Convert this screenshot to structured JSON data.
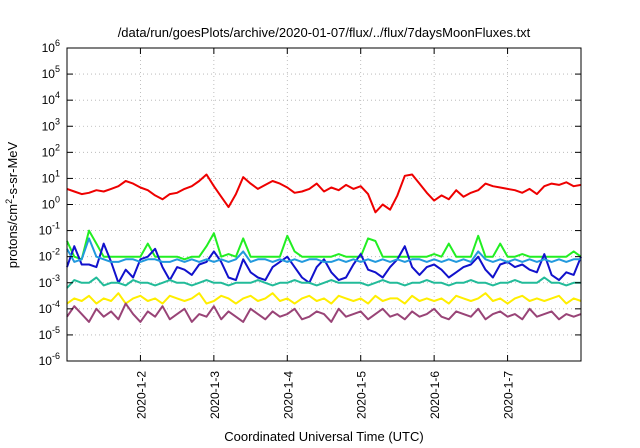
{
  "chart_data": {
    "type": "line",
    "title": "/data/run/goesPlots/archive/2020-01-07/flux/../flux/7daysMoonFluxes.txt",
    "xlabel": "Coordinated Universal Time (UTC)",
    "ylabel_base": "protons/cm",
    "ylabel_sup": "2",
    "ylabel_rest": "-s-sr-MeV",
    "y_scale": "log",
    "ylim_exp": [
      -6,
      6
    ],
    "y_ticks": [
      {
        "base": "10",
        "exp": "-6"
      },
      {
        "base": "10",
        "exp": "-5"
      },
      {
        "base": "10",
        "exp": "-4"
      },
      {
        "base": "10",
        "exp": "-3"
      },
      {
        "base": "10",
        "exp": "-2"
      },
      {
        "base": "10",
        "exp": "-1"
      },
      {
        "base": "10",
        "exp": "0"
      },
      {
        "base": "10",
        "exp": "1"
      },
      {
        "base": "10",
        "exp": "2"
      },
      {
        "base": "10",
        "exp": "3"
      },
      {
        "base": "10",
        "exp": "4"
      },
      {
        "base": "10",
        "exp": "5"
      },
      {
        "base": "10",
        "exp": "6"
      }
    ],
    "x_range": [
      "2020-01-01T00:00",
      "2020-01-08T00:00"
    ],
    "x_ticks": [
      "2020-1-2",
      "2020-1-3",
      "2020-1-4",
      "2020-1-5",
      "2020-1-6",
      "2020-1-7"
    ],
    "grid": true,
    "series": [
      {
        "color": "#ee0000",
        "x_days": [
          0,
          0.1,
          0.2,
          0.3,
          0.4,
          0.5,
          0.6,
          0.7,
          0.8,
          0.9,
          1.0,
          1.1,
          1.2,
          1.3,
          1.4,
          1.5,
          1.6,
          1.7,
          1.8,
          1.9,
          2.0,
          2.1,
          2.2,
          2.3,
          2.4,
          2.5,
          2.6,
          2.7,
          2.8,
          2.9,
          3.0,
          3.1,
          3.2,
          3.3,
          3.4,
          3.5,
          3.6,
          3.7,
          3.8,
          3.9,
          4.0,
          4.1,
          4.2,
          4.3,
          4.4,
          4.5,
          4.6,
          4.7,
          4.8,
          4.9,
          5.0,
          5.1,
          5.2,
          5.3,
          5.4,
          5.5,
          5.6,
          5.7,
          5.8,
          5.9,
          6.0,
          6.1,
          6.2,
          6.3,
          6.4,
          6.5,
          6.6,
          6.7,
          6.8,
          6.9,
          7.0
        ],
        "log10_y": [
          0.6,
          0.5,
          0.4,
          0.45,
          0.55,
          0.5,
          0.6,
          0.7,
          0.9,
          0.8,
          0.65,
          0.55,
          0.35,
          0.2,
          0.4,
          0.45,
          0.6,
          0.7,
          0.9,
          1.15,
          0.7,
          0.3,
          -0.1,
          0.4,
          1.05,
          0.8,
          0.6,
          0.75,
          0.9,
          0.8,
          0.65,
          0.45,
          0.5,
          0.6,
          0.8,
          0.5,
          0.65,
          0.55,
          0.75,
          0.6,
          0.7,
          0.4,
          -0.3,
          0.0,
          -0.2,
          0.35,
          1.1,
          1.15,
          0.8,
          0.45,
          0.15,
          0.35,
          0.2,
          0.55,
          0.3,
          0.45,
          0.55,
          0.8,
          0.7,
          0.65,
          0.6,
          0.55,
          0.45,
          0.6,
          0.4,
          0.7,
          0.8,
          0.75,
          0.85,
          0.7,
          0.75
        ]
      },
      {
        "color": "#22ee22",
        "x_days": [
          0,
          0.1,
          0.2,
          0.3,
          0.4,
          0.5,
          0.6,
          0.7,
          0.8,
          0.9,
          1.0,
          1.1,
          1.2,
          1.3,
          1.4,
          1.5,
          1.6,
          1.7,
          1.8,
          1.9,
          2.0,
          2.1,
          2.2,
          2.3,
          2.4,
          2.5,
          2.6,
          2.7,
          2.8,
          2.9,
          3.0,
          3.1,
          3.2,
          3.3,
          3.4,
          3.5,
          3.6,
          3.7,
          3.8,
          3.9,
          4.0,
          4.1,
          4.2,
          4.3,
          4.4,
          4.5,
          4.6,
          4.7,
          4.8,
          4.9,
          5.0,
          5.1,
          5.2,
          5.3,
          5.4,
          5.5,
          5.6,
          5.7,
          5.8,
          5.9,
          6.0,
          6.1,
          6.2,
          6.3,
          6.4,
          6.5,
          6.6,
          6.7,
          6.8,
          6.9,
          7.0
        ],
        "log10_y": [
          -1.4,
          -2.0,
          -2.1,
          -1.0,
          -1.5,
          -2.0,
          -2.0,
          -2.0,
          -2.0,
          -2.0,
          -2.0,
          -1.5,
          -2.0,
          -2.0,
          -2.0,
          -2.0,
          -2.1,
          -2.0,
          -2.0,
          -1.6,
          -1.1,
          -2.0,
          -1.9,
          -2.0,
          -1.3,
          -2.0,
          -2.0,
          -2.0,
          -2.0,
          -2.0,
          -1.2,
          -1.8,
          -2.0,
          -2.0,
          -2.0,
          -2.0,
          -2.0,
          -1.9,
          -2.0,
          -2.0,
          -2.0,
          -1.3,
          -1.4,
          -2.0,
          -2.0,
          -2.0,
          -2.0,
          -2.0,
          -2.0,
          -2.0,
          -1.9,
          -2.0,
          -1.5,
          -2.0,
          -2.0,
          -2.0,
          -1.2,
          -2.0,
          -2.0,
          -1.5,
          -2.0,
          -2.0,
          -1.9,
          -2.0,
          -2.0,
          -2.0,
          -2.0,
          -2.0,
          -2.0,
          -1.8,
          -2.0
        ]
      },
      {
        "color": "#1111cc",
        "x_days": [
          0,
          0.1,
          0.2,
          0.3,
          0.4,
          0.5,
          0.6,
          0.7,
          0.8,
          0.9,
          1.0,
          1.1,
          1.2,
          1.3,
          1.4,
          1.5,
          1.6,
          1.7,
          1.8,
          1.9,
          2.0,
          2.1,
          2.2,
          2.3,
          2.4,
          2.5,
          2.6,
          2.7,
          2.8,
          2.9,
          3.0,
          3.1,
          3.2,
          3.3,
          3.4,
          3.5,
          3.6,
          3.7,
          3.8,
          3.9,
          4.0,
          4.1,
          4.2,
          4.3,
          4.4,
          4.5,
          4.6,
          4.7,
          4.8,
          4.9,
          5.0,
          5.1,
          5.2,
          5.3,
          5.4,
          5.5,
          5.6,
          5.7,
          5.8,
          5.9,
          6.0,
          6.1,
          6.2,
          6.3,
          6.4,
          6.5,
          6.6,
          6.7,
          6.8,
          6.9,
          7.0
        ],
        "log10_y": [
          -2.4,
          -1.6,
          -2.3,
          -2.3,
          -2.4,
          -1.5,
          -2.2,
          -3.0,
          -2.5,
          -2.8,
          -2.1,
          -2.0,
          -1.7,
          -2.4,
          -2.9,
          -2.4,
          -2.5,
          -2.7,
          -2.3,
          -2.2,
          -1.8,
          -2.2,
          -2.8,
          -2.9,
          -2.1,
          -2.6,
          -2.8,
          -2.9,
          -2.4,
          -2.2,
          -2.0,
          -2.4,
          -2.8,
          -3.0,
          -2.4,
          -2.1,
          -2.6,
          -2.9,
          -2.8,
          -2.3,
          -1.9,
          -2.5,
          -2.6,
          -2.8,
          -2.4,
          -2.1,
          -1.6,
          -2.4,
          -2.7,
          -2.4,
          -2.3,
          -2.5,
          -2.8,
          -2.6,
          -2.4,
          -2.3,
          -2.0,
          -2.5,
          -2.8,
          -2.3,
          -2.2,
          -2.4,
          -2.3,
          -2.5,
          -2.6,
          -1.9,
          -2.7,
          -2.9,
          -2.6,
          -2.7,
          -2.0
        ]
      },
      {
        "color": "#2299dd",
        "x_days": [
          0,
          0.1,
          0.2,
          0.3,
          0.4,
          0.5,
          0.6,
          0.7,
          0.8,
          0.9,
          1.0,
          1.1,
          1.2,
          1.3,
          1.4,
          1.5,
          1.6,
          1.7,
          1.8,
          1.9,
          2.0,
          2.1,
          2.2,
          2.3,
          2.4,
          2.5,
          2.6,
          2.7,
          2.8,
          2.9,
          3.0,
          3.1,
          3.2,
          3.3,
          3.4,
          3.5,
          3.6,
          3.7,
          3.8,
          3.9,
          4.0,
          4.1,
          4.2,
          4.3,
          4.4,
          4.5,
          4.6,
          4.7,
          4.8,
          4.9,
          5.0,
          5.1,
          5.2,
          5.3,
          5.4,
          5.5,
          5.6,
          5.7,
          5.8,
          5.9,
          6.0,
          6.1,
          6.2,
          6.3,
          6.4,
          6.5,
          6.6,
          6.7,
          6.8,
          6.9,
          7.0
        ],
        "log10_y": [
          -1.7,
          -2.2,
          -2.1,
          -1.3,
          -2.0,
          -2.1,
          -2.2,
          -2.2,
          -2.1,
          -2.1,
          -2.2,
          -2.1,
          -2.1,
          -2.2,
          -2.2,
          -2.1,
          -2.2,
          -2.1,
          -2.2,
          -2.1,
          -2.2,
          -2.1,
          -2.2,
          -2.1,
          -1.8,
          -2.2,
          -2.1,
          -2.1,
          -2.2,
          -2.1,
          -2.2,
          -2.1,
          -2.2,
          -2.1,
          -2.1,
          -2.2,
          -2.2,
          -2.1,
          -2.2,
          -2.1,
          -2.2,
          -2.1,
          -2.2,
          -2.1,
          -2.2,
          -2.1,
          -2.2,
          -2.1,
          -2.1,
          -2.2,
          -2.1,
          -2.2,
          -2.1,
          -2.2,
          -2.1,
          -2.2,
          -1.8,
          -2.1,
          -2.2,
          -2.1,
          -2.2,
          -2.1,
          -2.2,
          -2.1,
          -2.2,
          -2.1,
          -2.2,
          -2.1,
          -2.2,
          -2.1,
          -2.1
        ]
      },
      {
        "color": "#22bb99",
        "x_days": [
          0,
          0.1,
          0.2,
          0.3,
          0.4,
          0.5,
          0.6,
          0.7,
          0.8,
          0.9,
          1.0,
          1.1,
          1.2,
          1.3,
          1.4,
          1.5,
          1.6,
          1.7,
          1.8,
          1.9,
          2.0,
          2.1,
          2.2,
          2.3,
          2.4,
          2.5,
          2.6,
          2.7,
          2.8,
          2.9,
          3.0,
          3.1,
          3.2,
          3.3,
          3.4,
          3.5,
          3.6,
          3.7,
          3.8,
          3.9,
          4.0,
          4.1,
          4.2,
          4.3,
          4.4,
          4.5,
          4.6,
          4.7,
          4.8,
          4.9,
          5.0,
          5.1,
          5.2,
          5.3,
          5.4,
          5.5,
          5.6,
          5.7,
          5.8,
          5.9,
          6.0,
          6.1,
          6.2,
          6.3,
          6.4,
          6.5,
          6.6,
          6.7,
          6.8,
          6.9,
          7.0
        ],
        "log10_y": [
          -3.2,
          -2.9,
          -3.0,
          -3.0,
          -2.8,
          -3.1,
          -3.0,
          -3.0,
          -3.1,
          -2.9,
          -3.0,
          -3.0,
          -3.1,
          -3.0,
          -2.9,
          -3.0,
          -3.0,
          -3.1,
          -3.0,
          -2.9,
          -3.0,
          -3.0,
          -3.1,
          -3.0,
          -3.0,
          -3.0,
          -2.9,
          -3.0,
          -3.1,
          -3.0,
          -3.0,
          -2.9,
          -3.0,
          -3.0,
          -3.1,
          -3.0,
          -2.9,
          -3.0,
          -3.0,
          -3.0,
          -3.0,
          -3.1,
          -3.0,
          -2.9,
          -3.0,
          -3.0,
          -3.1,
          -3.0,
          -3.0,
          -2.9,
          -3.0,
          -3.0,
          -3.1,
          -3.0,
          -3.0,
          -2.9,
          -3.0,
          -3.0,
          -3.1,
          -3.0,
          -3.0,
          -2.9,
          -3.0,
          -3.0,
          -3.0,
          -2.8,
          -3.0,
          -3.0,
          -3.1,
          -3.0,
          -3.0
        ]
      },
      {
        "color": "#ffee00",
        "x_days": [
          0,
          0.1,
          0.2,
          0.3,
          0.4,
          0.5,
          0.6,
          0.7,
          0.8,
          0.9,
          1.0,
          1.1,
          1.2,
          1.3,
          1.4,
          1.5,
          1.6,
          1.7,
          1.8,
          1.9,
          2.0,
          2.1,
          2.2,
          2.3,
          2.4,
          2.5,
          2.6,
          2.7,
          2.8,
          2.9,
          3.0,
          3.1,
          3.2,
          3.3,
          3.4,
          3.5,
          3.6,
          3.7,
          3.8,
          3.9,
          4.0,
          4.1,
          4.2,
          4.3,
          4.4,
          4.5,
          4.6,
          4.7,
          4.8,
          4.9,
          5.0,
          5.1,
          5.2,
          5.3,
          5.4,
          5.5,
          5.6,
          5.7,
          5.8,
          5.9,
          6.0,
          6.1,
          6.2,
          6.3,
          6.4,
          6.5,
          6.6,
          6.7,
          6.8,
          6.9,
          7.0
        ],
        "log10_y": [
          -3.8,
          -3.6,
          -3.7,
          -3.5,
          -3.8,
          -3.6,
          -3.7,
          -3.4,
          -3.8,
          -3.6,
          -3.5,
          -3.7,
          -3.6,
          -3.8,
          -3.5,
          -3.6,
          -3.7,
          -3.6,
          -3.4,
          -3.8,
          -3.7,
          -3.5,
          -3.6,
          -3.8,
          -3.6,
          -3.5,
          -3.7,
          -3.6,
          -3.4,
          -3.7,
          -3.6,
          -3.8,
          -3.6,
          -3.5,
          -3.7,
          -3.6,
          -3.8,
          -3.5,
          -3.6,
          -3.7,
          -3.6,
          -3.8,
          -3.5,
          -3.7,
          -3.6,
          -3.6,
          -3.8,
          -3.5,
          -3.7,
          -3.6,
          -3.7,
          -3.6,
          -3.8,
          -3.5,
          -3.6,
          -3.7,
          -3.6,
          -3.4,
          -3.7,
          -3.6,
          -3.8,
          -3.6,
          -3.5,
          -3.7,
          -3.6,
          -3.7,
          -3.6,
          -3.5,
          -3.8,
          -3.6,
          -3.7
        ]
      },
      {
        "color": "#994477",
        "x_days": [
          0,
          0.1,
          0.2,
          0.3,
          0.4,
          0.5,
          0.6,
          0.7,
          0.8,
          0.9,
          1.0,
          1.1,
          1.2,
          1.3,
          1.4,
          1.5,
          1.6,
          1.7,
          1.8,
          1.9,
          2.0,
          2.1,
          2.2,
          2.3,
          2.4,
          2.5,
          2.6,
          2.7,
          2.8,
          2.9,
          3.0,
          3.1,
          3.2,
          3.3,
          3.4,
          3.5,
          3.6,
          3.7,
          3.8,
          3.9,
          4.0,
          4.1,
          4.2,
          4.3,
          4.4,
          4.5,
          4.6,
          4.7,
          4.8,
          4.9,
          5.0,
          5.1,
          5.2,
          5.3,
          5.4,
          5.5,
          5.6,
          5.7,
          5.8,
          5.9,
          6.0,
          6.1,
          6.2,
          6.3,
          6.4,
          6.5,
          6.6,
          6.7,
          6.8,
          6.9,
          7.0
        ],
        "log10_y": [
          -4.3,
          -3.9,
          -4.2,
          -4.5,
          -4.0,
          -4.3,
          -4.1,
          -4.4,
          -3.8,
          -4.2,
          -4.5,
          -4.1,
          -4.3,
          -3.9,
          -4.4,
          -4.2,
          -4.0,
          -4.5,
          -4.2,
          -4.3,
          -3.9,
          -4.4,
          -4.1,
          -4.3,
          -4.5,
          -4.0,
          -4.2,
          -4.4,
          -4.1,
          -4.3,
          -4.2,
          -4.0,
          -4.4,
          -4.3,
          -4.1,
          -4.2,
          -4.5,
          -4.0,
          -4.3,
          -4.2,
          -4.1,
          -4.4,
          -4.2,
          -4.0,
          -4.3,
          -4.2,
          -4.4,
          -4.1,
          -4.3,
          -4.2,
          -4.0,
          -4.3,
          -4.4,
          -4.1,
          -4.2,
          -4.3,
          -4.0,
          -4.4,
          -4.2,
          -4.1,
          -4.3,
          -4.2,
          -4.4,
          -4.0,
          -4.3,
          -4.2,
          -4.1,
          -4.4,
          -4.2,
          -4.3,
          -4.2
        ]
      }
    ]
  }
}
